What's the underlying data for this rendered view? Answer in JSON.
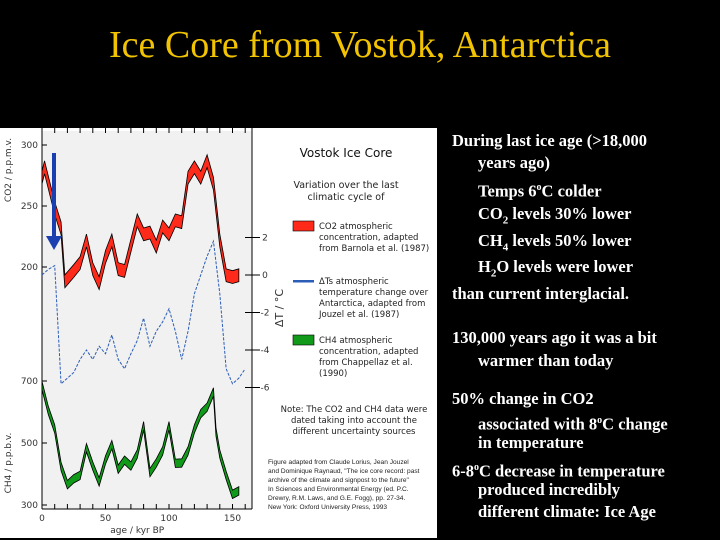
{
  "slide": {
    "title": "Ice Core from Vostok, Antarctica",
    "bullets": {
      "b1_l1": "During last ice age (>18,000",
      "b1_l2": "years ago)",
      "temps_pre": "Temps 6",
      "temps_sup": "o",
      "temps_post": "C colder",
      "co2_pre": "CO",
      "co2_sub": "2",
      "co2_post": " levels 30% lower",
      "ch4_pre": "CH",
      "ch4_sub": "4",
      "ch4_post": " levels 50% lower",
      "h2o_pre": "H",
      "h2o_sub": "2",
      "h2o_post": "O levels were lower",
      "b1_last": "than current interglacial.",
      "b2_l1": "130,000 years ago it was a bit",
      "b2_l2": "warmer than today",
      "b3_l1": "50% change in CO2",
      "b3_l2_pre": "associated with 8",
      "b3_l2_sup": "o",
      "b3_l2_post": "C change",
      "b3_l3": "in temperature",
      "b4_l1_pre": "6-8",
      "b4_l1_sup": "o",
      "b4_l1_post": "C decrease in temperature",
      "b4_l2": "produced incredibly",
      "b4_l3": "different climate: Ice Age"
    }
  },
  "figure": {
    "title": "Vostok Ice Core",
    "subtitle_l1": "Variation over the last",
    "subtitle_l2": "climatic cycle of",
    "legend": [
      {
        "l1": "CO2 atmospheric",
        "l2": "concentration, adapted",
        "l3": "from Barnola et al. (1987)",
        "color": "#ff2a1a"
      },
      {
        "l1": "ΔTs atmospheric",
        "l2": "temperature change over",
        "l3": "Antarctica, adapted from",
        "l4": "Jouzel et al. (1987)",
        "color": "#2b5db8"
      },
      {
        "l1": "CH4 atmospheric",
        "l2": "concentration, adapted",
        "l3": "from Chappellaz et al.",
        "l4": "(1990)",
        "color": "#119a1a"
      }
    ],
    "note_l1": "Note: The CO2 and CH4 data were",
    "note_l2": "dated taking into account the",
    "note_l3": "different uncertainty sources",
    "credit": [
      "Figure adapted from Claude Lorius, Jean Jouzel",
      "and Dominique Raynaud, \"The ice core record: past",
      "archive of the climate and signpost to the future\"",
      "In Sciences and Environmental Energy (ed. P.C.",
      "Drewry, R.M. Laws, and G.E. Fogg), pp. 27-34.",
      "New York: Oxford University Press, 1993"
    ],
    "arrow_color": "#1a3fb0"
  },
  "chart_data": {
    "type": "line",
    "xlabel": "age / kyr BP",
    "xticks": [
      "0",
      "50",
      "100",
      "150"
    ],
    "xlim": [
      0,
      160
    ],
    "co2_axis": {
      "label": "CO2 / p.p.m.v.",
      "ticks": [
        "300",
        "250",
        "200"
      ]
    },
    "ch4_axis": {
      "label": "CH4 / p.p.b.v.",
      "ticks": [
        "700",
        "500",
        "300"
      ]
    },
    "temp_axis": {
      "label": "ΔT / °C",
      "ticks": [
        "2",
        "0",
        "-2",
        "-4",
        "-6"
      ]
    },
    "series": [
      {
        "name": "CO2",
        "x": [
          0,
          2,
          10,
          15,
          18,
          25,
          30,
          35,
          40,
          45,
          50,
          55,
          60,
          65,
          75,
          80,
          85,
          90,
          95,
          100,
          105,
          110,
          115,
          120,
          125,
          130,
          135,
          140,
          145,
          150,
          155
        ],
        "values": [
          275,
          280,
          250,
          230,
          190,
          195,
          205,
          220,
          200,
          185,
          210,
          220,
          200,
          195,
          240,
          225,
          230,
          215,
          235,
          225,
          240,
          235,
          275,
          280,
          275,
          285,
          270,
          220,
          195,
          190,
          195
        ]
      },
      {
        "name": "ΔT",
        "x": [
          0,
          5,
          10,
          12,
          15,
          20,
          25,
          30,
          35,
          40,
          45,
          50,
          55,
          60,
          65,
          70,
          75,
          80,
          85,
          90,
          95,
          100,
          105,
          110,
          115,
          120,
          125,
          130,
          135,
          140,
          145,
          150,
          155,
          160
        ],
        "values": [
          0,
          0.3,
          0.5,
          -2,
          -5.8,
          -5.5,
          -5.2,
          -4.5,
          -4,
          -4.5,
          -3.8,
          -4.2,
          -3.2,
          -4.5,
          -5,
          -4.2,
          -3.5,
          -2.3,
          -3.8,
          -3,
          -2.5,
          -1.8,
          -3,
          -4.5,
          -3,
          -1,
          0,
          1,
          1.8,
          -1,
          -5,
          -5.8,
          -5.5,
          -5
        ]
      },
      {
        "name": "CH4",
        "x": [
          0,
          5,
          10,
          15,
          20,
          25,
          30,
          35,
          40,
          45,
          50,
          55,
          60,
          65,
          70,
          75,
          80,
          85,
          90,
          95,
          100,
          105,
          110,
          115,
          120,
          125,
          130,
          135,
          137,
          140,
          145,
          150,
          155
        ],
        "values": [
          690,
          600,
          550,
          420,
          370,
          380,
          400,
          480,
          430,
          370,
          450,
          490,
          420,
          440,
          430,
          460,
          560,
          400,
          440,
          470,
          560,
          430,
          440,
          470,
          550,
          590,
          620,
          660,
          540,
          460,
          400,
          330,
          350
        ]
      }
    ]
  }
}
